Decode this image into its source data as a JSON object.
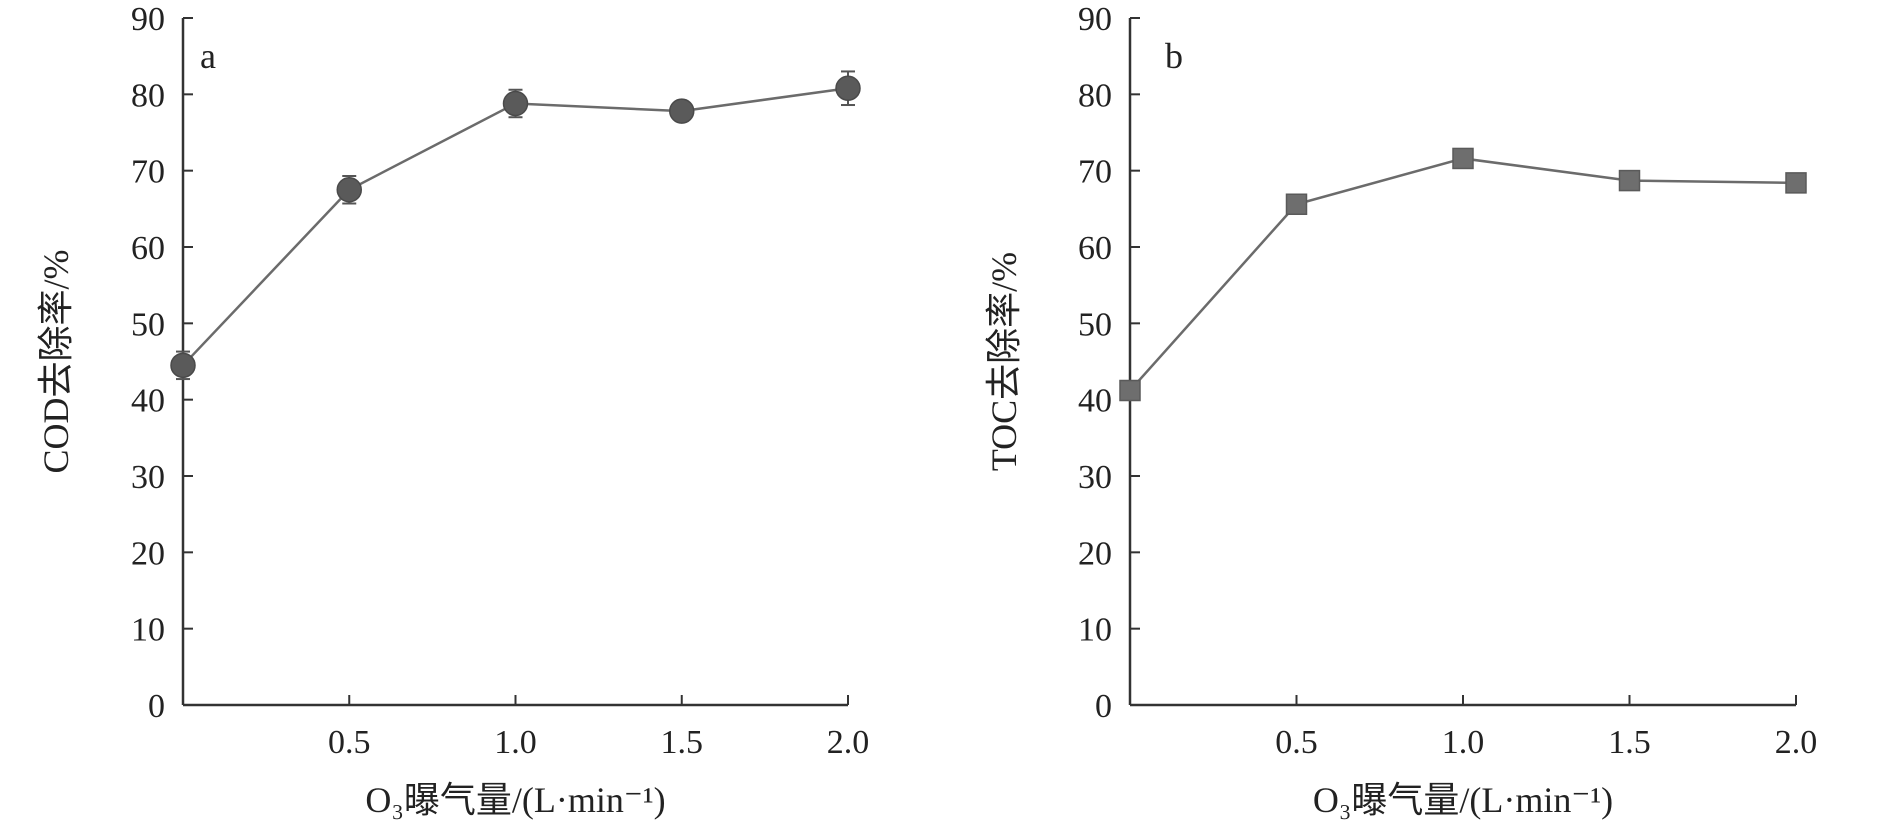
{
  "chart_data": [
    {
      "type": "line",
      "panel_label": "a",
      "x": [
        0.0,
        0.5,
        1.0,
        1.5,
        2.0
      ],
      "series": [
        {
          "values": [
            44.5,
            67.5,
            78.8,
            77.8,
            80.8
          ],
          "errors": [
            1.8,
            1.8,
            1.8,
            0.8,
            2.2
          ],
          "marker": "circle",
          "color": "#5a5a5a"
        }
      ],
      "xlabel": "O₃曝气量/(L·min⁻¹)",
      "ylabel": "COD去除率/%",
      "xlim": [
        0,
        2.0
      ],
      "ylim": [
        0,
        90
      ],
      "xticks": [
        "0.5",
        "1.0",
        "1.5",
        "2.0"
      ],
      "yticks": [
        "0",
        "10",
        "20",
        "30",
        "40",
        "50",
        "60",
        "70",
        "80",
        "90"
      ],
      "grid": false,
      "legend": "none"
    },
    {
      "type": "line",
      "panel_label": "b",
      "x": [
        0.0,
        0.5,
        1.0,
        1.5,
        2.0
      ],
      "series": [
        {
          "values": [
            41.2,
            65.6,
            71.6,
            68.7,
            68.4
          ],
          "marker": "square",
          "color": "#6e6e6e"
        }
      ],
      "xlabel": "O₃曝气量/(L·min⁻¹)",
      "ylabel": "TOC去除率/%",
      "xlim": [
        0,
        2.0
      ],
      "ylim": [
        0,
        90
      ],
      "xticks": [
        "0.5",
        "1.0",
        "1.5",
        "2.0"
      ],
      "yticks": [
        "0",
        "10",
        "20",
        "30",
        "40",
        "50",
        "60",
        "70",
        "80",
        "90"
      ],
      "grid": false,
      "legend": "none"
    }
  ]
}
